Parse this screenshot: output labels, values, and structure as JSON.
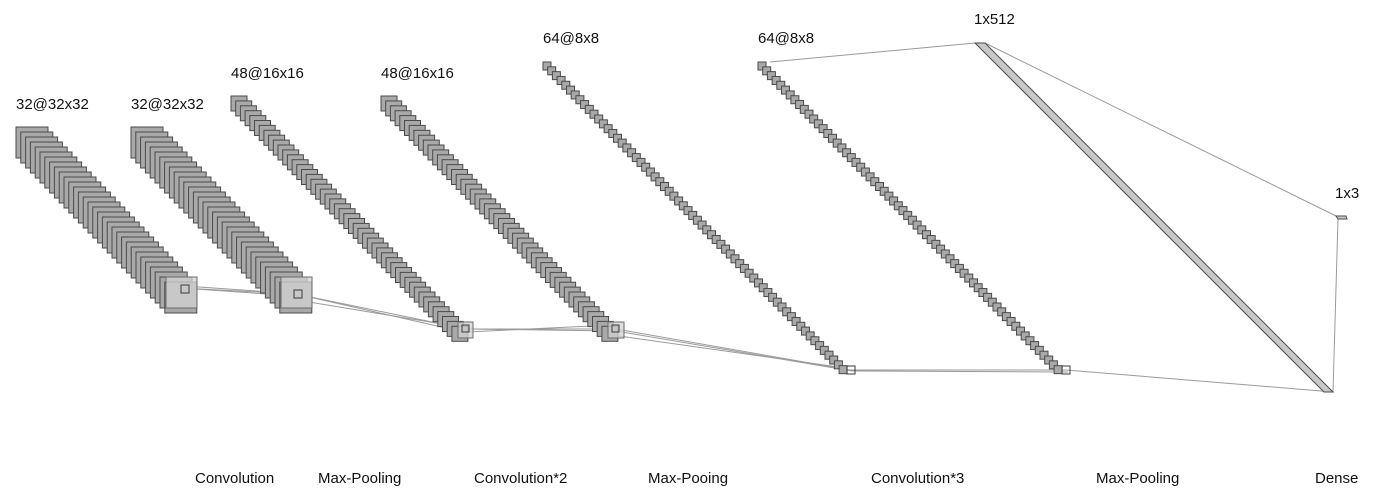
{
  "layers": [
    {
      "label": "32@32x32"
    },
    {
      "label": "32@32x32"
    },
    {
      "label": "48@16x16"
    },
    {
      "label": "48@16x16"
    },
    {
      "label": "64@8x8"
    },
    {
      "label": "64@8x8"
    },
    {
      "label": "1x512"
    },
    {
      "label": "1x3"
    }
  ],
  "operations": [
    {
      "label": "Convolution"
    },
    {
      "label": "Max-Pooling"
    },
    {
      "label": "Convolution*2"
    },
    {
      "label": "Max-Pooing"
    },
    {
      "label": "Convolution*3"
    },
    {
      "label": "Max-Pooling"
    },
    {
      "label": "Dense"
    }
  ],
  "colors": {
    "feature_map_fill": "#a9a9a9",
    "feature_map_stroke": "#4a4a4a",
    "connection_line": "#9a9a9a",
    "label_text": "#111111"
  }
}
